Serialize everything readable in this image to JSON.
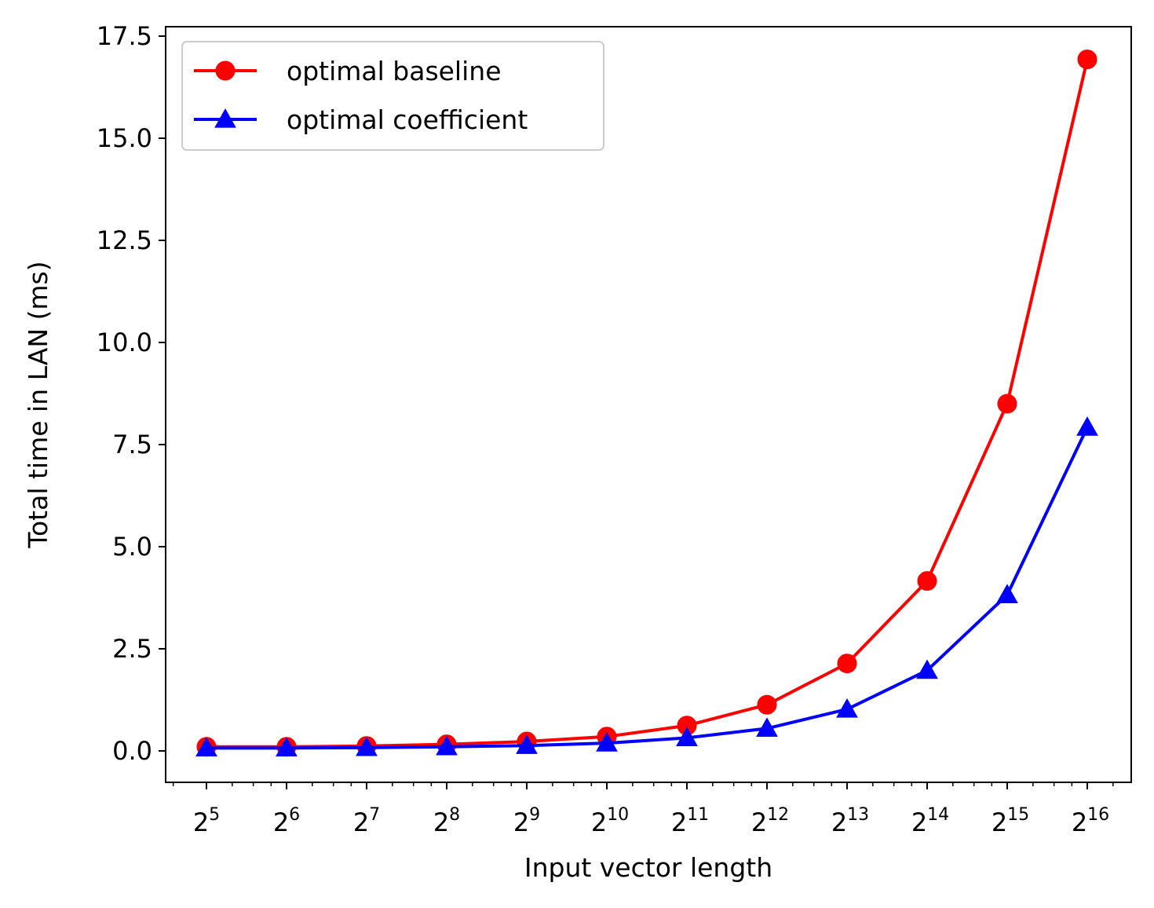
{
  "chart_data": {
    "type": "line",
    "title": "",
    "xlabel": "Input vector length",
    "ylabel": "Total time in LAN (ms)",
    "x_scale": "log2",
    "x": [
      32,
      64,
      128,
      256,
      512,
      1024,
      2048,
      4096,
      8192,
      16384,
      32768,
      65536
    ],
    "x_tick_labels": [
      {
        "base": "2",
        "exp": "5"
      },
      {
        "base": "2",
        "exp": "6"
      },
      {
        "base": "2",
        "exp": "7"
      },
      {
        "base": "2",
        "exp": "8"
      },
      {
        "base": "2",
        "exp": "9"
      },
      {
        "base": "2",
        "exp": "10"
      },
      {
        "base": "2",
        "exp": "11"
      },
      {
        "base": "2",
        "exp": "12"
      },
      {
        "base": "2",
        "exp": "13"
      },
      {
        "base": "2",
        "exp": "14"
      },
      {
        "base": "2",
        "exp": "15"
      },
      {
        "base": "2",
        "exp": "16"
      }
    ],
    "y_ticks": [
      "0.0",
      "2.5",
      "5.0",
      "7.5",
      "10.0",
      "12.5",
      "15.0",
      "17.5"
    ],
    "ylim": [
      -0.75,
      17.8
    ],
    "grid": false,
    "legend_position": "upper-left",
    "series": [
      {
        "name": "optimal baseline",
        "color": "#ff0000",
        "marker": "circle",
        "values": [
          0.1,
          0.1,
          0.12,
          0.16,
          0.23,
          0.35,
          0.62,
          1.13,
          2.14,
          4.16,
          8.5,
          16.93
        ]
      },
      {
        "name": "optimal coefficient",
        "color": "#0000ff",
        "marker": "triangle",
        "values": [
          0.07,
          0.07,
          0.08,
          0.1,
          0.13,
          0.19,
          0.32,
          0.55,
          1.02,
          1.97,
          3.82,
          7.92
        ]
      }
    ]
  }
}
